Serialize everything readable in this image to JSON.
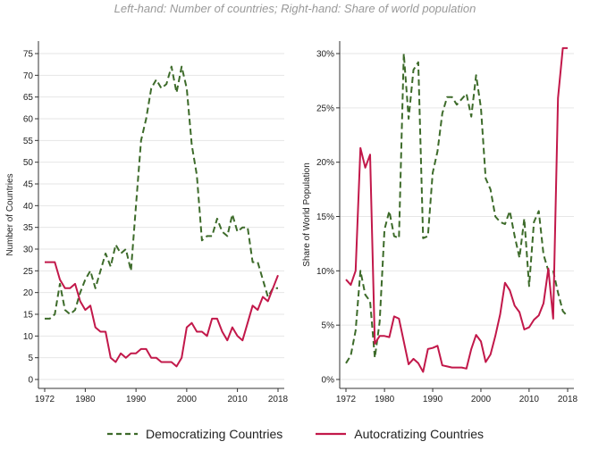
{
  "subtitle": "Left-hand: Number of countries; Right-hand: Share of world population",
  "legend": [
    {
      "label": "Democratizing Countries",
      "color": "#3d6b2a",
      "style": "dashed"
    },
    {
      "label": "Autocratizing Countries",
      "color": "#c2184a",
      "style": "solid"
    }
  ],
  "chart_data": [
    {
      "type": "line",
      "ylabel": "Number of Countries",
      "xlabel": "",
      "xlim": [
        1972,
        2018
      ],
      "ylim": [
        0,
        75
      ],
      "xticks": [
        1972,
        1980,
        1990,
        2000,
        2010,
        2018
      ],
      "xtick_labels": [
        "1972",
        "1980",
        "1990",
        "2000",
        "2010",
        "2018"
      ],
      "yticks": [
        0,
        5,
        10,
        15,
        20,
        25,
        30,
        35,
        40,
        45,
        50,
        55,
        60,
        65,
        70,
        75
      ],
      "ytick_labels": [
        "0",
        "5",
        "10",
        "15",
        "20",
        "25",
        "30",
        "35",
        "40",
        "45",
        "50",
        "55",
        "60",
        "65",
        "70",
        "75"
      ],
      "x": [
        1972,
        1973,
        1974,
        1975,
        1976,
        1977,
        1978,
        1979,
        1980,
        1981,
        1982,
        1983,
        1984,
        1985,
        1986,
        1987,
        1988,
        1989,
        1990,
        1991,
        1992,
        1993,
        1994,
        1995,
        1996,
        1997,
        1998,
        1999,
        2000,
        2001,
        2002,
        2003,
        2004,
        2005,
        2006,
        2007,
        2008,
        2009,
        2010,
        2011,
        2012,
        2013,
        2014,
        2015,
        2016,
        2017,
        2018
      ],
      "series": [
        {
          "name": "Democratizing Countries",
          "values": [
            14,
            14,
            15,
            22,
            16,
            15,
            16,
            20,
            23,
            25,
            21,
            25,
            29,
            26,
            31,
            29,
            30,
            25,
            40,
            55,
            60,
            67,
            69,
            67,
            68,
            72,
            66,
            72,
            67,
            54,
            47,
            32,
            33,
            33,
            37,
            34,
            33,
            38,
            34,
            35,
            35,
            27,
            27,
            23,
            19,
            21,
            21
          ]
        },
        {
          "name": "Autocratizing Countries",
          "values": [
            27,
            27,
            27,
            23,
            21,
            21,
            22,
            18,
            16,
            17,
            12,
            11,
            11,
            5,
            4,
            6,
            5,
            6,
            6,
            7,
            7,
            5,
            5,
            4,
            4,
            4,
            3,
            5,
            12,
            13,
            11,
            11,
            10,
            14,
            14,
            11,
            9,
            12,
            10,
            9,
            13,
            17,
            16,
            19,
            18,
            21,
            24
          ]
        }
      ]
    },
    {
      "type": "line",
      "ylabel": "Share of World Population",
      "xlabel": "",
      "xlim": [
        1972,
        2018
      ],
      "ylim": [
        0,
        30
      ],
      "xticks": [
        1972,
        1980,
        1990,
        2000,
        2010,
        2018
      ],
      "xtick_labels": [
        "1972",
        "1980",
        "1990",
        "2000",
        "2010",
        "2018"
      ],
      "yticks": [
        0,
        5,
        10,
        15,
        20,
        25,
        30
      ],
      "ytick_labels": [
        "0%",
        "5%",
        "10%",
        "15%",
        "20%",
        "25%",
        "30%"
      ],
      "x": [
        1972,
        1973,
        1974,
        1975,
        1976,
        1977,
        1978,
        1979,
        1980,
        1981,
        1982,
        1983,
        1984,
        1985,
        1986,
        1987,
        1988,
        1989,
        1990,
        1991,
        1992,
        1993,
        1994,
        1995,
        1996,
        1997,
        1998,
        1999,
        2000,
        2001,
        2002,
        2003,
        2004,
        2005,
        2006,
        2007,
        2008,
        2009,
        2010,
        2011,
        2012,
        2013,
        2014,
        2015,
        2016,
        2017,
        2018
      ],
      "series": [
        {
          "name": "Democratizing Countries",
          "values": [
            1.5,
            2.2,
            4.5,
            10.0,
            7.8,
            7.2,
            2.0,
            5.3,
            13.8,
            15.5,
            13.2,
            13.0,
            30.0,
            24.0,
            28.5,
            29.2,
            13.0,
            13.2,
            19.0,
            21.0,
            24.5,
            26.0,
            26.0,
            25.3,
            25.8,
            26.3,
            24.2,
            28.0,
            25.0,
            18.5,
            17.5,
            15.0,
            14.5,
            14.3,
            15.5,
            13.2,
            11.2,
            14.8,
            8.6,
            14.5,
            15.5,
            11.5,
            10.0,
            10.0,
            8.0,
            6.3,
            5.8
          ]
        },
        {
          "name": "Autocratizing Countries",
          "values": [
            9.2,
            8.7,
            10.0,
            21.3,
            19.5,
            20.7,
            3.3,
            4.0,
            4.0,
            3.9,
            5.8,
            5.6,
            3.5,
            1.4,
            1.9,
            1.5,
            0.7,
            2.8,
            2.9,
            3.1,
            1.3,
            1.2,
            1.1,
            1.1,
            1.1,
            1.0,
            2.8,
            4.1,
            3.5,
            1.6,
            2.3,
            4.0,
            6.0,
            8.9,
            8.2,
            6.8,
            6.2,
            4.6,
            4.8,
            5.5,
            5.9,
            7.0,
            10.2,
            5.6,
            25.9,
            30.5,
            30.5
          ]
        }
      ]
    }
  ]
}
